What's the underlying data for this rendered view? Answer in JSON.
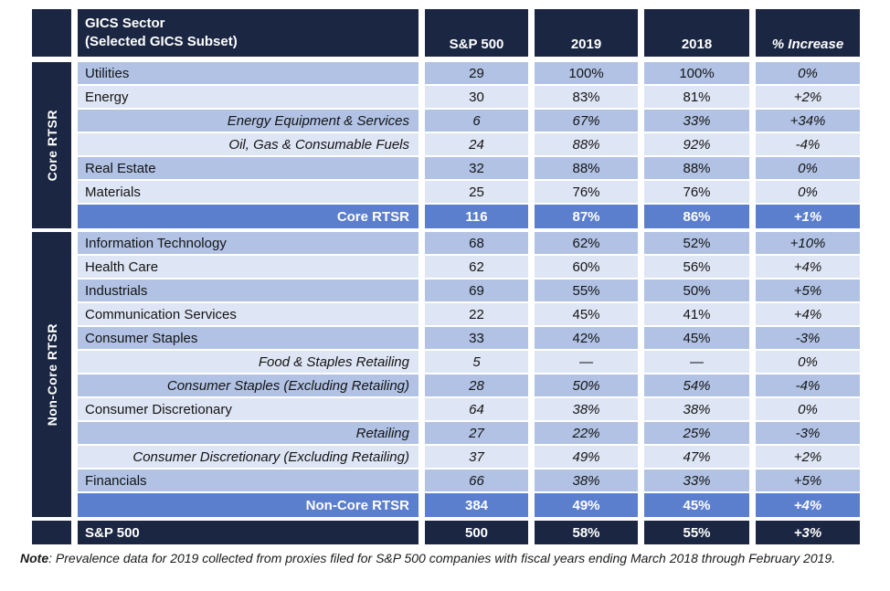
{
  "colors": {
    "navy": "#1b2742",
    "medium": "#b1c2e4",
    "light": "#dee5f4",
    "total": "#5b7ecd"
  },
  "header": {
    "sector_line1": "GICS Sector",
    "sector_line2": "(Selected GICS Subset)",
    "sp500": "S&P 500",
    "y2019": "2019",
    "y2018": "2018",
    "increase": "% Increase"
  },
  "groups": [
    {
      "id": "core",
      "sidebar_label": "Core RTSR",
      "rows": [
        {
          "label": "Utilities",
          "sp500": "29",
          "y2019": "100%",
          "y2018": "100%",
          "inc": "0%",
          "style": "medium",
          "align": "left",
          "label_italic": false,
          "num_italic": false
        },
        {
          "label": "Energy",
          "sp500": "30",
          "y2019": "83%",
          "y2018": "81%",
          "inc": "+2%",
          "style": "light",
          "align": "left",
          "label_italic": false,
          "num_italic": false
        },
        {
          "label": "Energy Equipment & Services",
          "sp500": "6",
          "y2019": "67%",
          "y2018": "33%",
          "inc": "+34%",
          "style": "medium",
          "align": "right",
          "label_italic": true,
          "num_italic": true
        },
        {
          "label": "Oil, Gas & Consumable Fuels",
          "sp500": "24",
          "y2019": "88%",
          "y2018": "92%",
          "inc": "-4%",
          "style": "light",
          "align": "right",
          "label_italic": true,
          "num_italic": true
        },
        {
          "label": "Real Estate",
          "sp500": "32",
          "y2019": "88%",
          "y2018": "88%",
          "inc": "0%",
          "style": "medium",
          "align": "left",
          "label_italic": false,
          "num_italic": false
        },
        {
          "label": "Materials",
          "sp500": "25",
          "y2019": "76%",
          "y2018": "76%",
          "inc": "0%",
          "style": "light",
          "align": "left",
          "label_italic": false,
          "num_italic": false
        },
        {
          "label": "Core RTSR",
          "sp500": "116",
          "y2019": "87%",
          "y2018": "86%",
          "inc": "+1%",
          "style": "total",
          "align": "right",
          "label_italic": false,
          "num_italic": false
        }
      ]
    },
    {
      "id": "noncore",
      "sidebar_label": "Non-Core RTSR",
      "rows": [
        {
          "label": "Information Technology",
          "sp500": "68",
          "y2019": "62%",
          "y2018": "52%",
          "inc": "+10%",
          "style": "medium",
          "align": "left",
          "label_italic": false,
          "num_italic": false
        },
        {
          "label": "Health Care",
          "sp500": "62",
          "y2019": "60%",
          "y2018": "56%",
          "inc": "+4%",
          "style": "light",
          "align": "left",
          "label_italic": false,
          "num_italic": false
        },
        {
          "label": "Industrials",
          "sp500": "69",
          "y2019": "55%",
          "y2018": "50%",
          "inc": "+5%",
          "style": "medium",
          "align": "left",
          "label_italic": false,
          "num_italic": false
        },
        {
          "label": "Communication Services",
          "sp500": "22",
          "y2019": "45%",
          "y2018": "41%",
          "inc": "+4%",
          "style": "light",
          "align": "left",
          "label_italic": false,
          "num_italic": false
        },
        {
          "label": "Consumer Staples",
          "sp500": "33",
          "y2019": "42%",
          "y2018": "45%",
          "inc": "-3%",
          "style": "medium",
          "align": "left",
          "label_italic": false,
          "num_italic": false
        },
        {
          "label": "Food & Staples Retailing",
          "sp500": "5",
          "y2019": "—",
          "y2018": "—",
          "inc": "0%",
          "style": "light",
          "align": "right",
          "label_italic": true,
          "num_italic": true
        },
        {
          "label": "Consumer Staples (Excluding Retailing)",
          "sp500": "28",
          "y2019": "50%",
          "y2018": "54%",
          "inc": "-4%",
          "style": "medium",
          "align": "right",
          "label_italic": true,
          "num_italic": true
        },
        {
          "label": "Consumer Discretionary",
          "sp500": "64",
          "y2019": "38%",
          "y2018": "38%",
          "inc": "0%",
          "style": "light",
          "align": "left",
          "label_italic": false,
          "num_italic": true
        },
        {
          "label": "Retailing",
          "sp500": "27",
          "y2019": "22%",
          "y2018": "25%",
          "inc": "-3%",
          "style": "medium",
          "align": "right",
          "label_italic": true,
          "num_italic": true
        },
        {
          "label": "Consumer Discretionary (Excluding Retailing)",
          "sp500": "37",
          "y2019": "49%",
          "y2018": "47%",
          "inc": "+2%",
          "style": "light",
          "align": "right",
          "label_italic": true,
          "num_italic": true
        },
        {
          "label": "Financials",
          "sp500": "66",
          "y2019": "38%",
          "y2018": "33%",
          "inc": "+5%",
          "style": "medium",
          "align": "left",
          "label_italic": false,
          "num_italic": true
        },
        {
          "label": "Non-Core RTSR",
          "sp500": "384",
          "y2019": "49%",
          "y2018": "45%",
          "inc": "+4%",
          "style": "total",
          "align": "right",
          "label_italic": false,
          "num_italic": false
        }
      ]
    }
  ],
  "footer_row": {
    "label": "S&P 500",
    "sp500": "500",
    "y2019": "58%",
    "y2018": "55%",
    "inc": "+3%"
  },
  "note": {
    "prefix": "Note",
    "body": ": Prevalence data for 2019 collected from proxies filed for S&P 500 companies with fiscal years ending March 2018 through February 2019."
  }
}
